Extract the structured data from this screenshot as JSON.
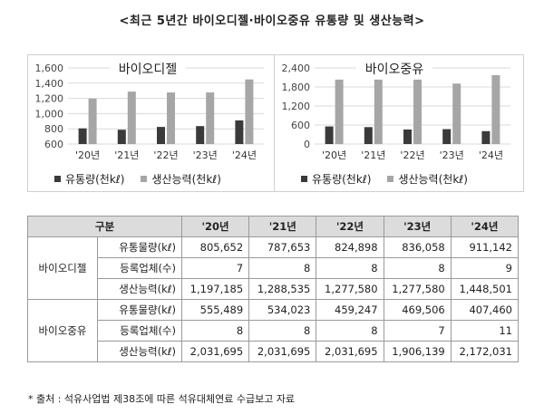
{
  "title": "<최근 5년간 바이오디젤·바이오중유 유통량 및 생산능력>",
  "charts": [
    {
      "type": "bar",
      "title": "바이오디젤",
      "categories": [
        "'20년",
        "'21년",
        "'22년",
        "'23년",
        "'24년"
      ],
      "ylim": [
        600,
        1600
      ],
      "yticks": [
        "1,600",
        "1,400",
        "1,200",
        "1,000",
        "800",
        "600"
      ],
      "ytick_values": [
        1600,
        1400,
        1200,
        1000,
        800,
        600
      ],
      "series": [
        {
          "name": "유통량(천kℓ)",
          "values": [
            806,
            788,
            825,
            836,
            911
          ],
          "color": "#3a3a3a"
        },
        {
          "name": "생산능력(천kℓ)",
          "values": [
            1197,
            1289,
            1278,
            1278,
            1449
          ],
          "color": "#a6a6a6"
        }
      ]
    },
    {
      "type": "bar",
      "title": "바이오중유",
      "categories": [
        "'20년",
        "'21년",
        "'22년",
        "'23년",
        "'24년"
      ],
      "ylim": [
        0,
        2400
      ],
      "yticks": [
        "2,400",
        "1,800",
        "1,200",
        "600",
        "0"
      ],
      "ytick_values": [
        2400,
        1800,
        1200,
        600,
        0
      ],
      "series": [
        {
          "name": "유통량(천kℓ)",
          "values": [
            555,
            534,
            459,
            470,
            407
          ],
          "color": "#3a3a3a"
        },
        {
          "name": "생산능력(천kℓ)",
          "values": [
            2032,
            2032,
            2032,
            1906,
            2172
          ],
          "color": "#a6a6a6"
        }
      ]
    }
  ],
  "table": {
    "headers": [
      "구분",
      "'20년",
      "'21년",
      "'22년",
      "'23년",
      "'24년"
    ],
    "groups": [
      {
        "name": "바이오디젤",
        "rows": [
          {
            "label": "유통물량(kℓ)",
            "values": [
              "805,652",
              "787,653",
              "824,898",
              "836,058",
              "911,142"
            ]
          },
          {
            "label": "등록업체(수)",
            "values": [
              "7",
              "8",
              "8",
              "8",
              "9"
            ]
          },
          {
            "label": "생산능력(kℓ)",
            "values": [
              "1,197,185",
              "1,288,535",
              "1,277,580",
              "1,277,580",
              "1,448,501"
            ]
          }
        ]
      },
      {
        "name": "바이오중유",
        "rows": [
          {
            "label": "유통물량(kℓ)",
            "values": [
              "555,489",
              "534,023",
              "459,247",
              "469,506",
              "407,460"
            ]
          },
          {
            "label": "등록업체(수)",
            "values": [
              "8",
              "8",
              "8",
              "7",
              "11"
            ]
          },
          {
            "label": "생산능력(kℓ)",
            "values": [
              "2,031,695",
              "2,031,695",
              "2,031,695",
              "1,906,139",
              "2,172,031"
            ]
          }
        ]
      }
    ]
  },
  "footnote": "* 출처 : 석유사업법 제38조에 따른 석유대체연료 수급보고 자료"
}
